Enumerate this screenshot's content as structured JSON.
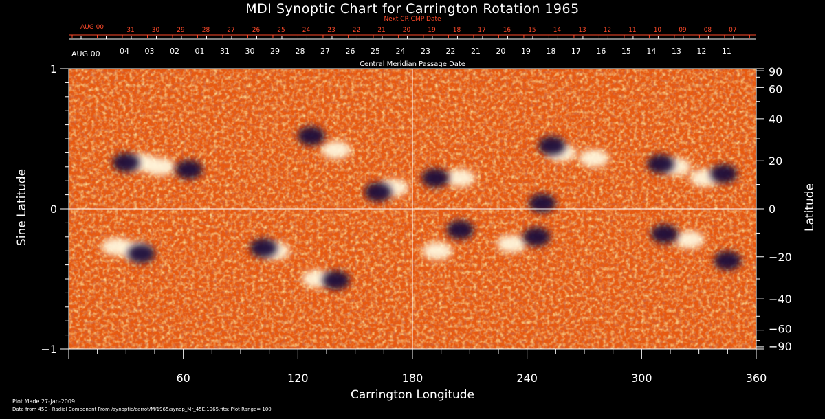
{
  "colors": {
    "background": "#000000",
    "axis": "#ffffff",
    "next_cr_axis": "#ff4a2a",
    "map_base": "#e85a10",
    "map_positive": "#fff6dc",
    "map_negative": "#1a0e3a"
  },
  "chart_data": {
    "type": "heatmap",
    "title": "MDI Synoptic Chart for Carrington Rotation 1965",
    "xlabel": "Carrington Longitude",
    "ylabel_left": "Sine Latitude",
    "ylabel_right": "Latitude",
    "xlim": [
      0,
      360
    ],
    "ylim": [
      -1,
      1
    ],
    "x_ticks": [
      "60",
      "120",
      "180",
      "240",
      "300",
      "360"
    ],
    "y_left_ticks": [
      "1",
      "0",
      "−1"
    ],
    "y_right_ticks": [
      "90",
      "60",
      "40",
      "20",
      "0",
      "−20",
      "−40",
      "−60",
      "−90"
    ],
    "top_axis_label": "Central Meridian Passage Date",
    "top_axis_start": "AUG 00",
    "top_axis_dates": [
      "04",
      "03",
      "02",
      "01",
      "31",
      "30",
      "29",
      "28",
      "27",
      "26",
      "25",
      "24",
      "23",
      "22",
      "21",
      "20",
      "19",
      "18",
      "17",
      "16",
      "15",
      "14",
      "13",
      "12",
      "11"
    ],
    "next_cr_label": "Next CR CMP Date",
    "next_cr_start": "AUG 00",
    "next_cr_dates": [
      "31",
      "30",
      "29",
      "28",
      "27",
      "26",
      "25",
      "24",
      "23",
      "22",
      "21",
      "20",
      "19",
      "18",
      "17",
      "16",
      "15",
      "14",
      "13",
      "12",
      "11",
      "10",
      "09",
      "08",
      "07"
    ],
    "grid": "crosshair at longitude 180 and latitude 0",
    "positive_regions": [
      {
        "lon": 38,
        "lat": 0.33
      },
      {
        "lon": 48,
        "lat": 0.3
      },
      {
        "lon": 140,
        "lat": 0.42
      },
      {
        "lon": 170,
        "lat": 0.15
      },
      {
        "lon": 205,
        "lat": 0.22
      },
      {
        "lon": 258,
        "lat": 0.4
      },
      {
        "lon": 275,
        "lat": 0.36
      },
      {
        "lon": 318,
        "lat": 0.3
      },
      {
        "lon": 333,
        "lat": 0.22
      },
      {
        "lon": 25,
        "lat": -0.27
      },
      {
        "lon": 35,
        "lat": -0.3
      },
      {
        "lon": 130,
        "lat": -0.5
      },
      {
        "lon": 193,
        "lat": -0.3
      },
      {
        "lon": 232,
        "lat": -0.25
      },
      {
        "lon": 325,
        "lat": -0.22
      },
      {
        "lon": 108,
        "lat": -0.3
      }
    ],
    "negative_regions": [
      {
        "lon": 30,
        "lat": 0.33
      },
      {
        "lon": 63,
        "lat": 0.28
      },
      {
        "lon": 127,
        "lat": 0.52
      },
      {
        "lon": 162,
        "lat": 0.12
      },
      {
        "lon": 192,
        "lat": 0.22
      },
      {
        "lon": 253,
        "lat": 0.45
      },
      {
        "lon": 310,
        "lat": 0.32
      },
      {
        "lon": 343,
        "lat": 0.25
      },
      {
        "lon": 248,
        "lat": 0.04
      },
      {
        "lon": 38,
        "lat": -0.32
      },
      {
        "lon": 102,
        "lat": -0.28
      },
      {
        "lon": 140,
        "lat": -0.51
      },
      {
        "lon": 205,
        "lat": -0.15
      },
      {
        "lon": 245,
        "lat": -0.2
      },
      {
        "lon": 312,
        "lat": -0.18
      },
      {
        "lon": 345,
        "lat": -0.37
      }
    ]
  },
  "footer": {
    "plot_made": "Plot Made 27-Jan-2009",
    "data_source": "Data from 45E - Radial Component From /synoptic/carrot/M/1965/synop_Mr_45E.1965.fits; Plot Range=  100"
  }
}
